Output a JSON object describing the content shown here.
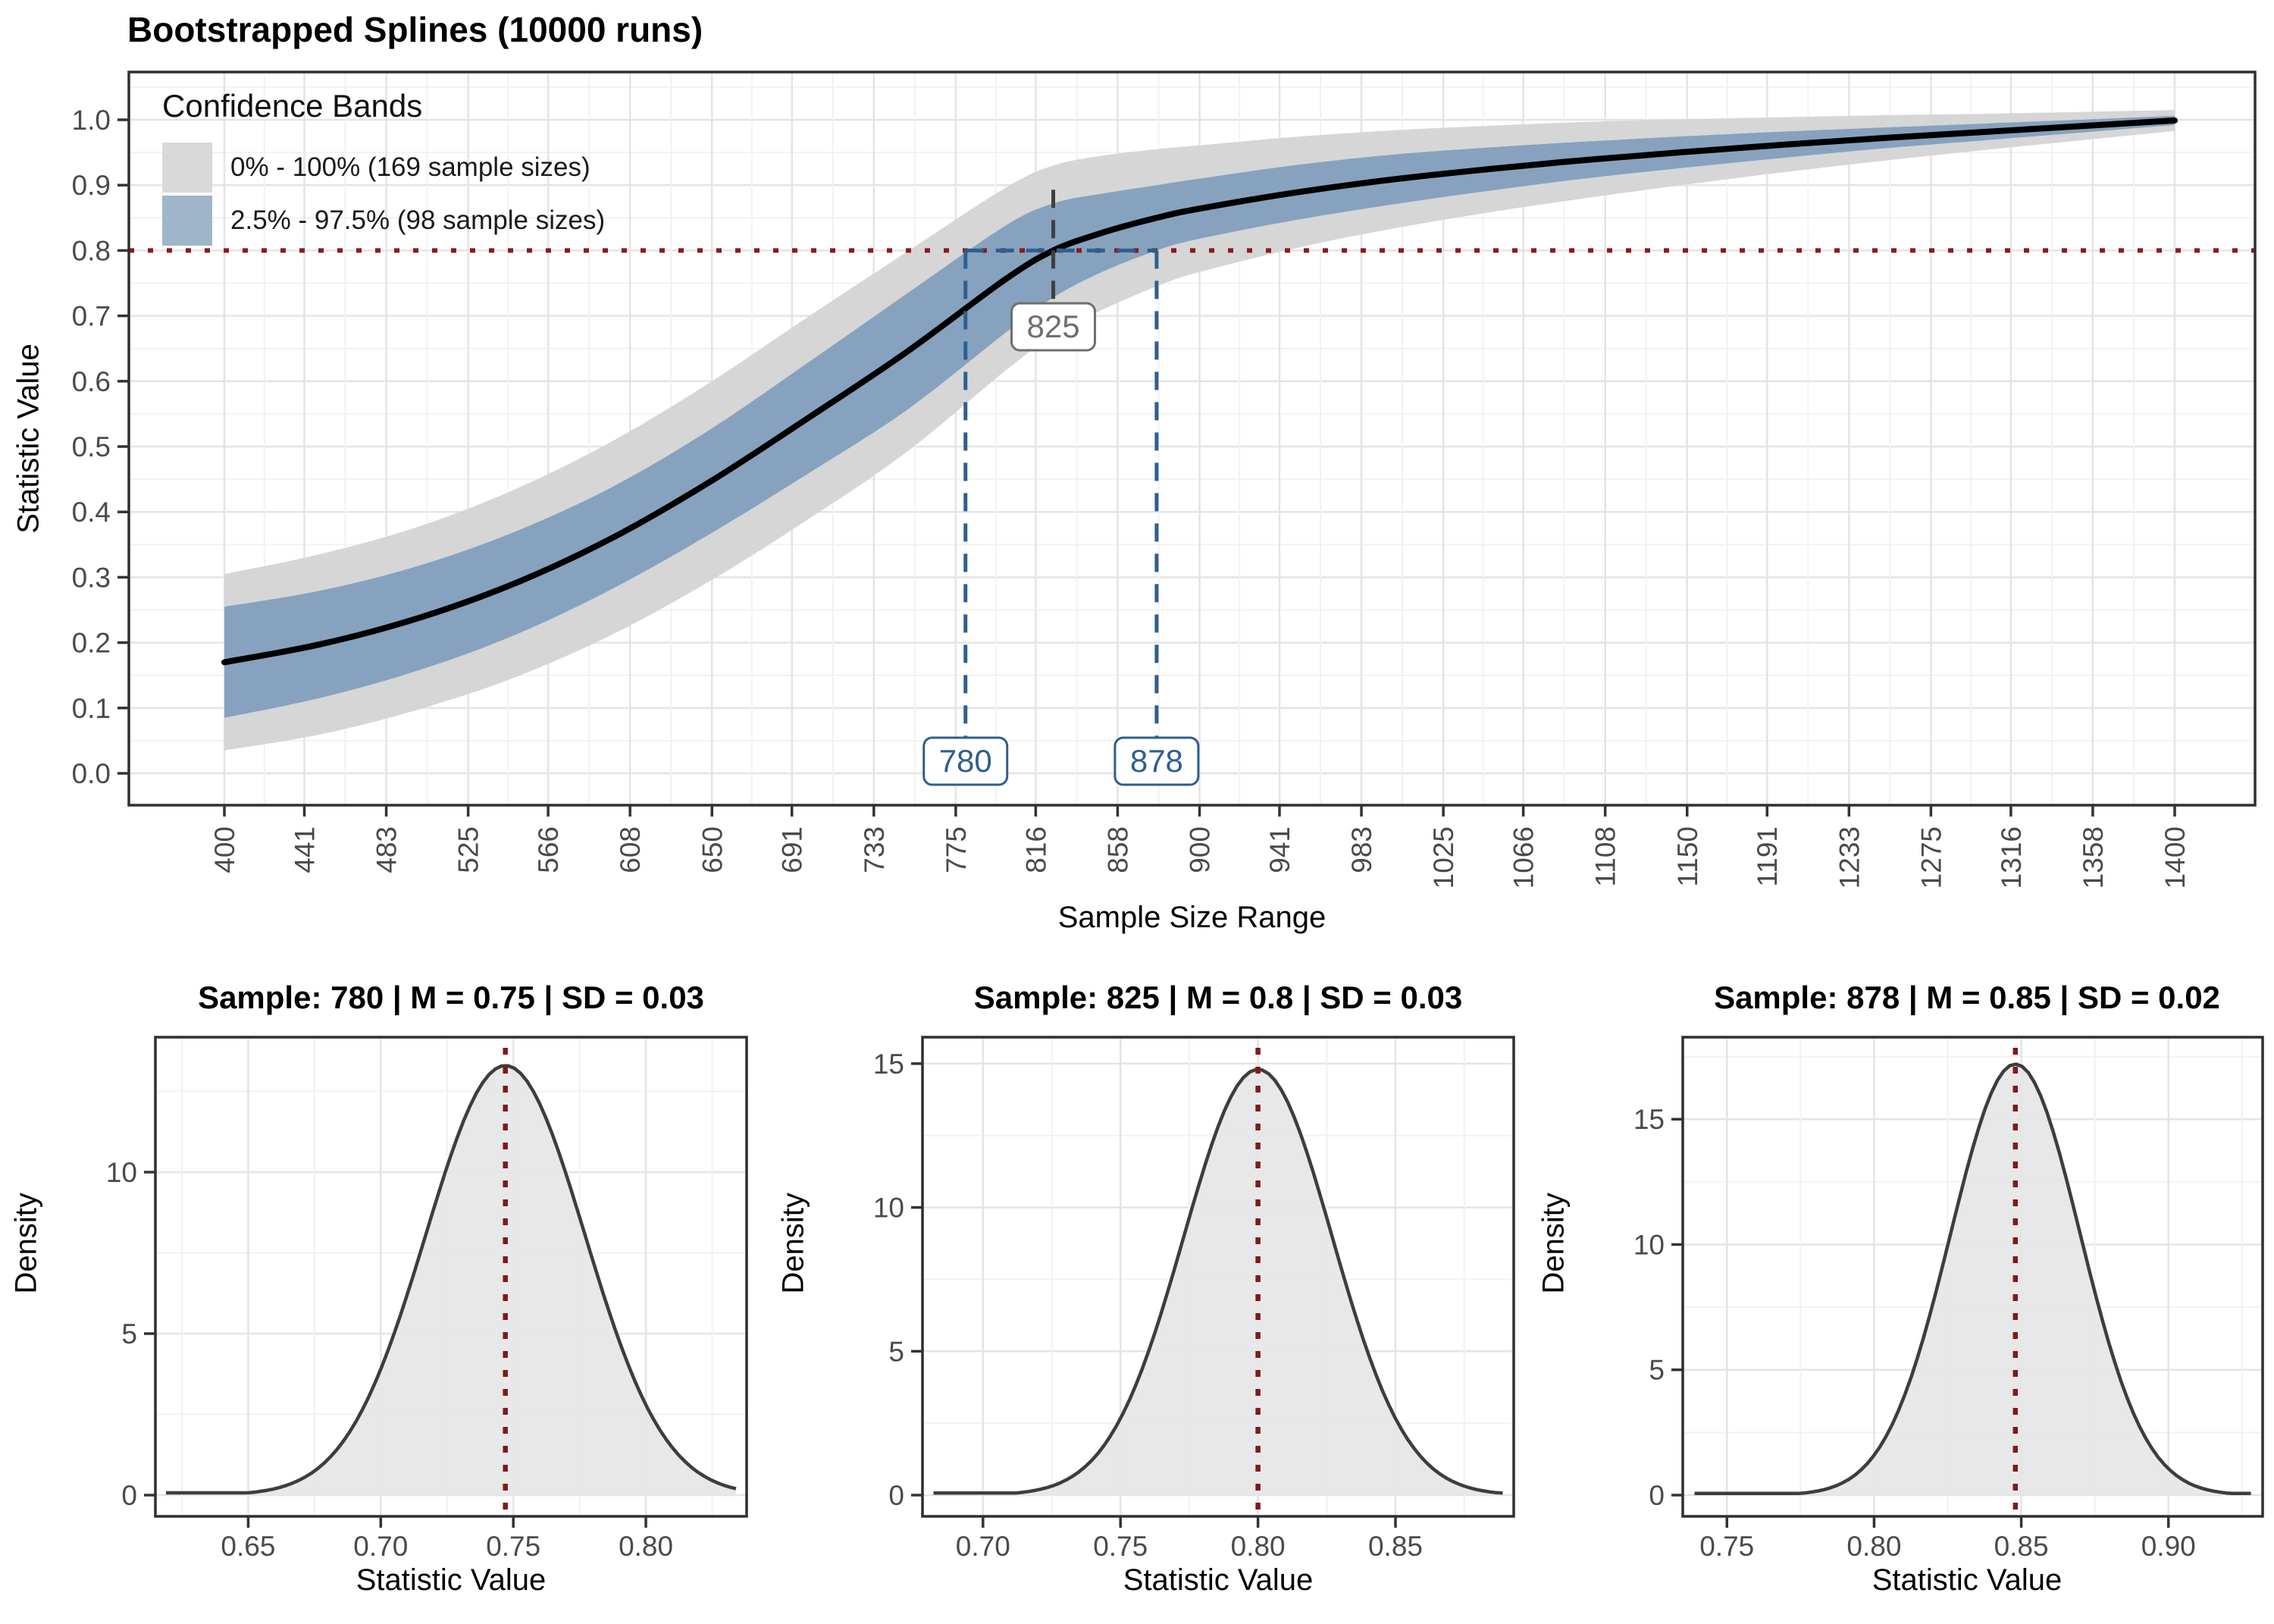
{
  "colors": {
    "band_outer": "#d6d6d6",
    "band_inner": "#87a2bf",
    "legend_outer_swatch": "#d9d9d9",
    "legend_inner_swatch": "#9fb5ca",
    "spline": "#000000",
    "hline_red": "#8b1a1a",
    "annotation_blue": "#2e5f8f",
    "annotation_gray_line": "#404040",
    "annotation_gray_text": "#5a5a5a",
    "density_fill": "#e6e6e6",
    "density_stroke": "#3d3d3d",
    "mean_line_red": "#7e1a1a",
    "grid_major": "#e4e4e4",
    "grid_minor": "#f2f2f2",
    "panel_border": "#2f2f2f",
    "tick_text": "#4a4a4a"
  },
  "chart_data": [
    {
      "id": "main",
      "type": "line",
      "title": "Bootstrapped Splines (10000 runs)",
      "xlabel": "Sample Size Range",
      "ylabel": "Statistic Value",
      "x_ticks": [
        400,
        441,
        483,
        525,
        566,
        608,
        650,
        691,
        733,
        775,
        816,
        858,
        900,
        941,
        983,
        1025,
        1066,
        1108,
        1150,
        1191,
        1233,
        1275,
        1316,
        1358,
        1400
      ],
      "y_ticks": [
        "0.0",
        "0.1",
        "0.2",
        "0.3",
        "0.4",
        "0.5",
        "0.6",
        "0.7",
        "0.8",
        "0.9",
        "1.0"
      ],
      "xlim": [
        351,
        1441
      ],
      "ylim": [
        -0.049,
        1.073
      ],
      "grid": true,
      "hline_y": 0.8,
      "legend": {
        "title": "Confidence Bands",
        "position": "top-left-inside",
        "items": [
          {
            "label": "0% - 100% (169 sample sizes)",
            "color": "#d9d9d9"
          },
          {
            "label": "2.5% - 97.5% (98 sample sizes)",
            "color": "#9fb5ca"
          }
        ]
      },
      "annotations": {
        "lower_bound": "780",
        "crossing": "825",
        "upper_bound": "878"
      },
      "series": [
        {
          "name": "spline_mean",
          "points": [
            [
              400,
              0.17
            ],
            [
              450,
              0.198
            ],
            [
              500,
              0.238
            ],
            [
              550,
              0.292
            ],
            [
              600,
              0.362
            ],
            [
              650,
              0.448
            ],
            [
              700,
              0.545
            ],
            [
              750,
              0.645
            ],
            [
              800,
              0.755
            ],
            [
              825,
              0.8
            ],
            [
              850,
              0.827
            ],
            [
              878,
              0.85
            ],
            [
              900,
              0.864
            ],
            [
              950,
              0.889
            ],
            [
              1000,
              0.909
            ],
            [
              1050,
              0.925
            ],
            [
              1100,
              0.939
            ],
            [
              1150,
              0.951
            ],
            [
              1200,
              0.962
            ],
            [
              1250,
              0.972
            ],
            [
              1300,
              0.981
            ],
            [
              1350,
              0.99
            ],
            [
              1400,
              0.999
            ]
          ]
        },
        {
          "name": "band_inner_2.5_97.5",
          "points": [
            [
              400,
              0.085,
              0.255
            ],
            [
              450,
              0.116,
              0.28
            ],
            [
              500,
              0.158,
              0.318
            ],
            [
              550,
              0.213,
              0.371
            ],
            [
              600,
              0.284,
              0.44
            ],
            [
              650,
              0.368,
              0.528
            ],
            [
              700,
              0.46,
              0.63
            ],
            [
              750,
              0.556,
              0.734
            ],
            [
              800,
              0.673,
              0.837
            ],
            [
              825,
              0.728,
              0.872
            ],
            [
              850,
              0.767,
              0.887
            ],
            [
              878,
              0.8,
              0.9
            ],
            [
              900,
              0.818,
              0.91
            ],
            [
              950,
              0.847,
              0.931
            ],
            [
              1000,
              0.871,
              0.947
            ],
            [
              1050,
              0.892,
              0.958
            ],
            [
              1100,
              0.911,
              0.967
            ],
            [
              1150,
              0.927,
              0.975
            ],
            [
              1200,
              0.942,
              0.982
            ],
            [
              1250,
              0.956,
              0.988
            ],
            [
              1300,
              0.968,
              0.994
            ],
            [
              1350,
              0.98,
              1.0
            ],
            [
              1400,
              0.992,
              1.006
            ]
          ]
        },
        {
          "name": "band_outer_0_100",
          "points": [
            [
              400,
              0.035,
              0.305
            ],
            [
              450,
              0.06,
              0.336
            ],
            [
              500,
              0.098,
              0.378
            ],
            [
              550,
              0.148,
              0.436
            ],
            [
              600,
              0.214,
              0.51
            ],
            [
              650,
              0.296,
              0.6
            ],
            [
              700,
              0.39,
              0.7
            ],
            [
              750,
              0.492,
              0.798
            ],
            [
              800,
              0.615,
              0.895
            ],
            [
              825,
              0.67,
              0.93
            ],
            [
              850,
              0.709,
              0.945
            ],
            [
              878,
              0.745,
              0.955
            ],
            [
              900,
              0.767,
              0.961
            ],
            [
              950,
              0.804,
              0.974
            ],
            [
              1000,
              0.834,
              0.984
            ],
            [
              1050,
              0.859,
              0.991
            ],
            [
              1100,
              0.881,
              0.997
            ],
            [
              1150,
              0.901,
              1.001
            ],
            [
              1200,
              0.92,
              1.004
            ],
            [
              1250,
              0.937,
              1.007
            ],
            [
              1300,
              0.953,
              1.009
            ],
            [
              1350,
              0.968,
              1.012
            ],
            [
              1400,
              0.983,
              1.015
            ]
          ]
        }
      ]
    },
    {
      "id": "density_780",
      "type": "area",
      "title": "Sample: 780 | M = 0.75 | SD = 0.03",
      "xlabel": "Statistic Value",
      "ylabel": "Density",
      "mean": 0.747,
      "sd": 0.03,
      "peak_density": 13.3,
      "xlim": [
        0.615,
        0.838
      ],
      "x_ticks": [
        0.65,
        0.7,
        0.75,
        0.8
      ],
      "x_tick_labels": [
        "0.65",
        "0.70",
        "0.75",
        "0.80"
      ],
      "ylim": [
        0,
        13.85
      ],
      "y_ticks": [
        0,
        5,
        10
      ],
      "grid": true
    },
    {
      "id": "density_825",
      "type": "area",
      "title": "Sample: 825 | M = 0.8 | SD = 0.03",
      "xlabel": "Statistic Value",
      "ylabel": "Density",
      "mean": 0.8,
      "sd": 0.027,
      "peak_density": 14.8,
      "xlim": [
        0.678,
        0.893
      ],
      "x_ticks": [
        0.7,
        0.75,
        0.8,
        0.85
      ],
      "x_tick_labels": [
        "0.70",
        "0.75",
        "0.80",
        "0.85"
      ],
      "ylim": [
        0,
        15.55
      ],
      "y_ticks": [
        0,
        5,
        10,
        15
      ],
      "grid": true
    },
    {
      "id": "density_878",
      "type": "area",
      "title": "Sample: 878 | M = 0.85 | SD = 0.02",
      "xlabel": "Statistic Value",
      "ylabel": "Density",
      "mean": 0.848,
      "sd": 0.022,
      "peak_density": 17.2,
      "xlim": [
        0.735,
        0.932
      ],
      "x_ticks": [
        0.75,
        0.8,
        0.85,
        0.9
      ],
      "x_tick_labels": [
        "0.75",
        "0.80",
        "0.85",
        "0.90"
      ],
      "ylim": [
        0,
        17.85
      ],
      "y_ticks": [
        0,
        5,
        10,
        15
      ],
      "grid": true
    }
  ]
}
